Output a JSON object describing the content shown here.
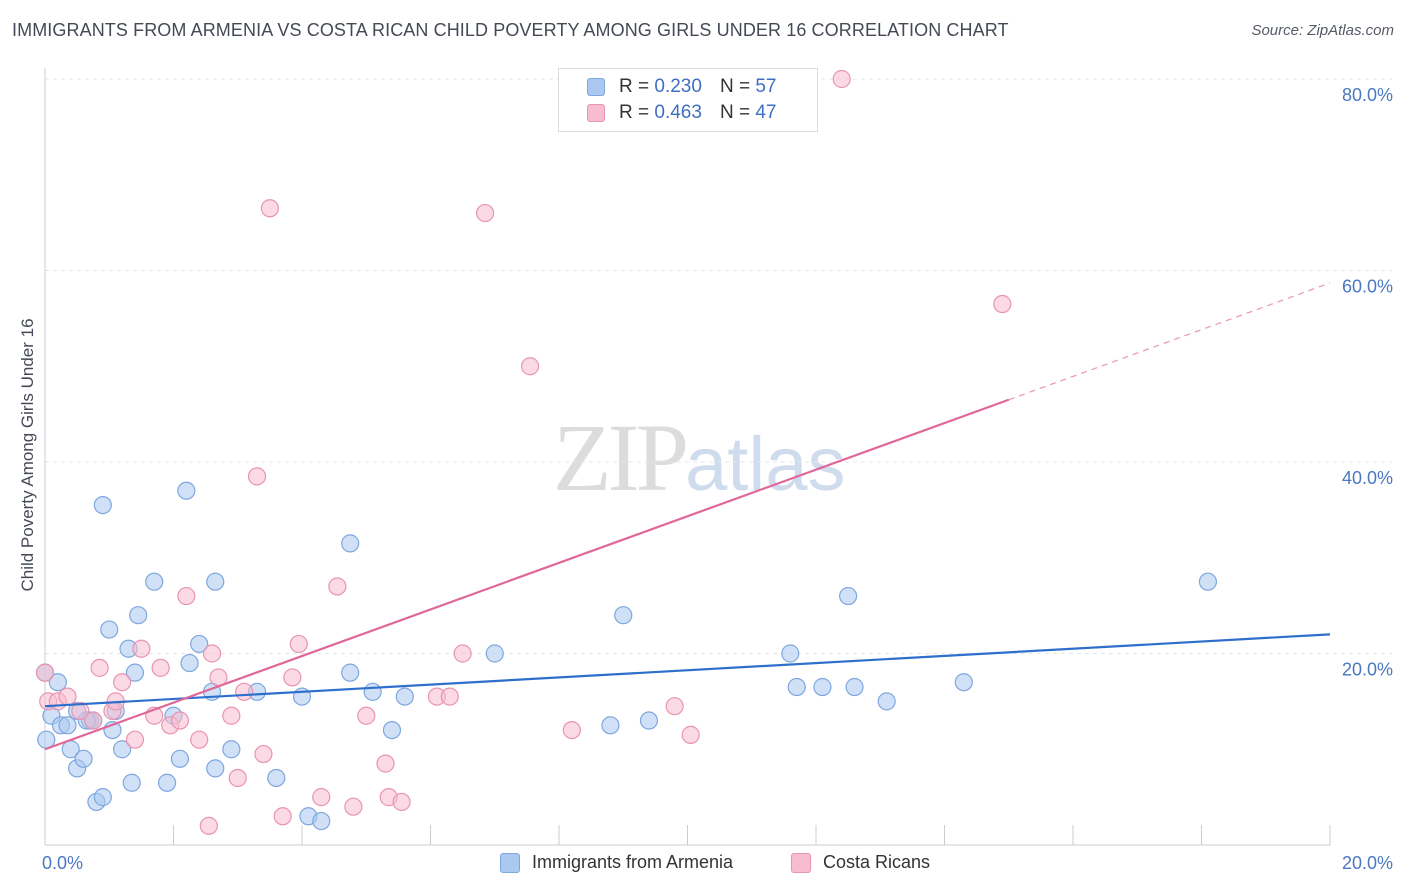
{
  "title": "IMMIGRANTS FROM ARMENIA VS COSTA RICAN CHILD POVERTY AMONG GIRLS UNDER 16 CORRELATION CHART",
  "source": "Source: ZipAtlas.com",
  "watermark": {
    "zip": "ZIP",
    "atlas": "atlas"
  },
  "legend_top": [
    {
      "r_label": "R =",
      "r_value": "0.230",
      "n_label": "N =",
      "n_value": "57",
      "color": "#aac8f0",
      "border": "#7ea7de"
    },
    {
      "r_label": "R =",
      "r_value": "0.463",
      "n_label": "N =",
      "n_value": "47",
      "color": "#f8bcd0",
      "border": "#e994b0"
    }
  ],
  "legend_bottom": [
    {
      "label": "Immigrants from Armenia",
      "color": "#aac8f0",
      "border": "#7ea7de"
    },
    {
      "label": "Costa Ricans",
      "color": "#f8bcd0",
      "border": "#e994b0"
    }
  ],
  "chart_data": {
    "type": "scatter",
    "title": "IMMIGRANTS FROM ARMENIA VS COSTA RICAN CHILD POVERTY AMONG GIRLS UNDER 16 CORRELATION CHART",
    "xlabel": "",
    "ylabel": "Child Poverty Among Girls Under 16",
    "xlim": [
      0,
      20
    ],
    "ylim": [
      0,
      80
    ],
    "x_ticks": [
      0,
      20
    ],
    "x_tick_labels": [
      "0.0%",
      "20.0%"
    ],
    "y_ticks": [
      20,
      40,
      60,
      80
    ],
    "y_tick_labels": [
      "20.0%",
      "40.0%",
      "60.0%",
      "80.0%"
    ],
    "grid": true,
    "legend_placement": "top-center",
    "series": [
      {
        "name": "Immigrants from Armenia",
        "color": "#7ea7de",
        "fill": "#aac8f0",
        "trend": {
          "x": [
            0,
            20
          ],
          "y": [
            14.5,
            22.0
          ],
          "color": "#2f6fcc"
        },
        "points": [
          [
            0.0,
            18.0
          ],
          [
            0.02,
            11.0
          ],
          [
            0.1,
            13.5
          ],
          [
            0.2,
            17.0
          ],
          [
            0.25,
            12.5
          ],
          [
            0.35,
            12.5
          ],
          [
            0.4,
            10.0
          ],
          [
            0.5,
            14.0
          ],
          [
            0.5,
            8.0
          ],
          [
            0.6,
            9.0
          ],
          [
            0.7,
            13.0
          ],
          [
            0.75,
            13.0
          ],
          [
            0.8,
            4.5
          ],
          [
            0.9,
            5.0
          ],
          [
            0.9,
            35.5
          ],
          [
            1.0,
            22.5
          ],
          [
            1.05,
            12.0
          ],
          [
            1.2,
            10.0
          ],
          [
            1.3,
            20.5
          ],
          [
            1.35,
            6.5
          ],
          [
            1.4,
            18.0
          ],
          [
            1.45,
            24.0
          ],
          [
            1.7,
            27.5
          ],
          [
            1.9,
            6.5
          ],
          [
            2.0,
            13.5
          ],
          [
            2.1,
            9.0
          ],
          [
            2.2,
            37.0
          ],
          [
            2.25,
            19.0
          ],
          [
            2.4,
            21.0
          ],
          [
            2.6,
            16.0
          ],
          [
            2.65,
            27.5
          ],
          [
            2.65,
            8.0
          ],
          [
            2.9,
            10.0
          ],
          [
            3.3,
            16.0
          ],
          [
            3.6,
            7.0
          ],
          [
            4.0,
            15.5
          ],
          [
            4.1,
            3.0
          ],
          [
            4.3,
            2.5
          ],
          [
            4.75,
            31.5
          ],
          [
            4.75,
            18.0
          ],
          [
            5.1,
            16.0
          ],
          [
            5.4,
            12.0
          ],
          [
            5.6,
            15.5
          ],
          [
            7.0,
            20.0
          ],
          [
            8.8,
            12.5
          ],
          [
            9.0,
            24.0
          ],
          [
            9.4,
            13.0
          ],
          [
            11.6,
            20.0
          ],
          [
            11.7,
            16.5
          ],
          [
            12.1,
            16.5
          ],
          [
            12.5,
            26.0
          ],
          [
            12.6,
            16.5
          ],
          [
            13.1,
            15.0
          ],
          [
            14.3,
            17.0
          ],
          [
            18.1,
            27.5
          ],
          [
            0.65,
            13.0
          ],
          [
            1.1,
            14.0
          ]
        ]
      },
      {
        "name": "Costa Ricans",
        "color": "#e994b0",
        "fill": "#f8bcd0",
        "trend": {
          "x": [
            0,
            15.0
          ],
          "y": [
            10.0,
            46.5
          ],
          "color": "#e0679a",
          "dashed_to": {
            "x": 20,
            "y": 58.7
          }
        },
        "points": [
          [
            0.0,
            18.0
          ],
          [
            0.05,
            15.0
          ],
          [
            0.2,
            15.0
          ],
          [
            0.35,
            15.5
          ],
          [
            0.55,
            14.0
          ],
          [
            0.75,
            13.0
          ],
          [
            0.85,
            18.5
          ],
          [
            1.05,
            14.0
          ],
          [
            1.1,
            15.0
          ],
          [
            1.2,
            17.0
          ],
          [
            1.4,
            11.0
          ],
          [
            1.5,
            20.5
          ],
          [
            1.7,
            13.5
          ],
          [
            1.8,
            18.5
          ],
          [
            1.95,
            12.5
          ],
          [
            2.1,
            13.0
          ],
          [
            2.2,
            26.0
          ],
          [
            2.4,
            11.0
          ],
          [
            2.55,
            2.0
          ],
          [
            2.6,
            20.0
          ],
          [
            2.7,
            17.5
          ],
          [
            2.9,
            13.5
          ],
          [
            3.0,
            7.0
          ],
          [
            3.1,
            16.0
          ],
          [
            3.3,
            38.5
          ],
          [
            3.4,
            9.5
          ],
          [
            3.5,
            66.5
          ],
          [
            3.7,
            3.0
          ],
          [
            3.85,
            17.5
          ],
          [
            3.95,
            21.0
          ],
          [
            4.3,
            5.0
          ],
          [
            4.55,
            27.0
          ],
          [
            4.8,
            4.0
          ],
          [
            5.0,
            13.5
          ],
          [
            5.3,
            8.5
          ],
          [
            5.35,
            5.0
          ],
          [
            5.55,
            4.5
          ],
          [
            6.1,
            15.5
          ],
          [
            6.3,
            15.5
          ],
          [
            6.5,
            20.0
          ],
          [
            6.85,
            66.0
          ],
          [
            7.55,
            50.0
          ],
          [
            8.2,
            12.0
          ],
          [
            9.8,
            14.5
          ],
          [
            10.05,
            11.5
          ],
          [
            12.4,
            80.0
          ],
          [
            14.9,
            56.5
          ]
        ]
      }
    ]
  }
}
